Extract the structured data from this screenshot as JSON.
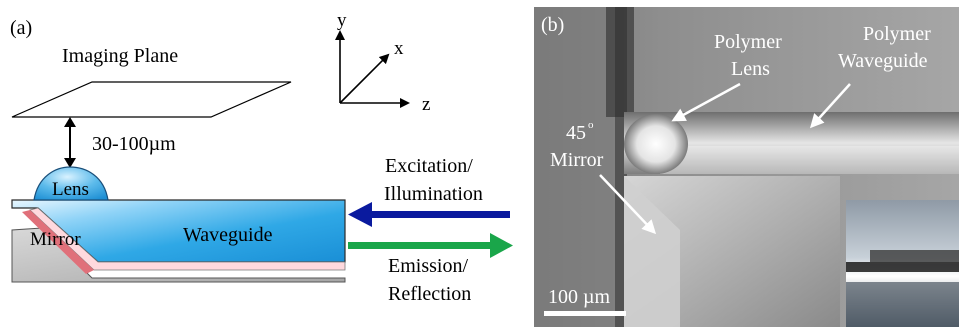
{
  "panel_a": {
    "tag": "(a)",
    "imaging_plane": "Imaging Plane",
    "distance": "30-100µm",
    "lens": "Lens",
    "mirror": "Mirror",
    "waveguide": "Waveguide",
    "axes": {
      "y": "y",
      "x": "x",
      "z": "z"
    },
    "excitation_line1": "Excitation/",
    "excitation_line2": "Illumination",
    "emission_line1": "Emission/",
    "emission_line2": "Reflection",
    "colors": {
      "waveguide_fill": "#2fa8e6",
      "lens_fill": "#39a9e3",
      "mirror_stripe": "#e0707a",
      "substrate": "#bcbcbc",
      "excitation_arrow": "#0a1a9e",
      "emission_arrow": "#1aa64a"
    }
  },
  "panel_b": {
    "tag": "(b)",
    "polymer_lens_line1": "Polymer",
    "polymer_lens_line2": "Lens",
    "polymer_waveguide_line1": "Polymer",
    "polymer_waveguide_line2": "Waveguide",
    "angle": "45",
    "degree_mark": "o",
    "mirror": "Mirror",
    "scale_bar": "100 µm"
  }
}
